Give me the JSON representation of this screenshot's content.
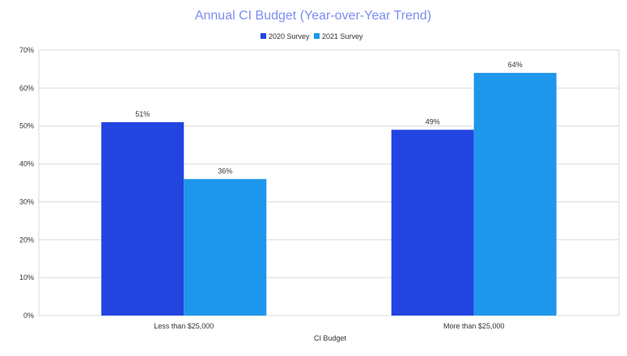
{
  "chart_data": {
    "type": "bar",
    "title": "Annual CI Budget (Year-over-Year Trend)",
    "xlabel": "CI Budget",
    "ylabel": "",
    "categories": [
      "Less than $25,000",
      "More than $25,000"
    ],
    "series": [
      {
        "name": "2020 Survey",
        "values": [
          51,
          49
        ],
        "labels": [
          "51%",
          "49%"
        ],
        "color": "#2244e0"
      },
      {
        "name": "2021 Survey",
        "values": [
          36,
          64
        ],
        "labels": [
          "36%",
          "64%"
        ],
        "color": "#1e96ec"
      }
    ],
    "ylim": [
      0,
      70
    ],
    "yticks": [
      0,
      10,
      20,
      30,
      40,
      50,
      60,
      70
    ],
    "ytick_labels": [
      "0%",
      "10%",
      "20%",
      "30%",
      "40%",
      "50%",
      "60%",
      "70%"
    ],
    "grid": true,
    "legend_position": "top-center",
    "title_color": "#7b8ef0"
  }
}
